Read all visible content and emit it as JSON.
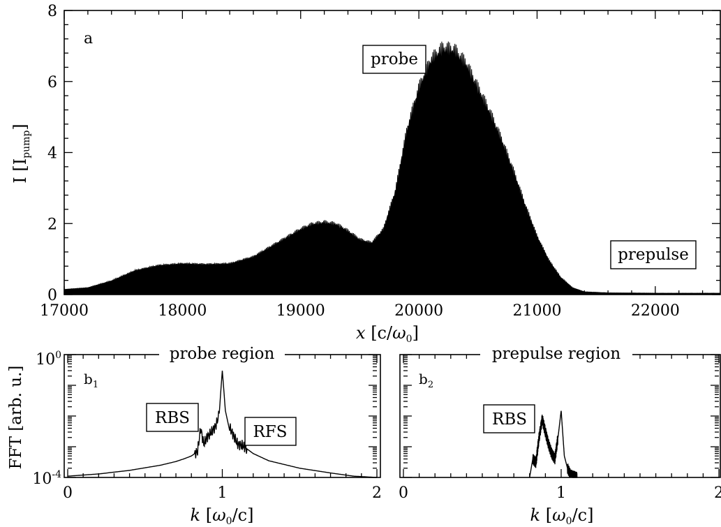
{
  "chart_data": [
    {
      "id": "a",
      "type": "area",
      "panel_label": "a",
      "xlabel": "x [c/ω0]",
      "ylabel": "I [I_pump]",
      "xlim": [
        17000,
        22550
      ],
      "ylim": [
        0,
        8
      ],
      "xticks": [
        17000,
        18000,
        19000,
        20000,
        21000,
        22000
      ],
      "xtick_labels": [
        "17000",
        "18000",
        "19000",
        "20000",
        "21000",
        "22000"
      ],
      "yticks": [
        0,
        2,
        4,
        6,
        8
      ],
      "ytick_labels": [
        "0",
        "2",
        "4",
        "6",
        "8"
      ],
      "series_color": "#000000",
      "annotations": [
        "probe",
        "prepulse"
      ],
      "envelope": {
        "x": [
          17000,
          17200,
          17400,
          17600,
          17800,
          18000,
          18200,
          18400,
          18600,
          18800,
          19000,
          19100,
          19200,
          19300,
          19400,
          19500,
          19600,
          19700,
          19800,
          19900,
          20000,
          20100,
          20200,
          20300,
          20400,
          20500,
          20600,
          20700,
          20800,
          20900,
          21000,
          21100,
          21200,
          21300,
          21400,
          21600,
          22000,
          22550
        ],
        "y": [
          0.15,
          0.2,
          0.4,
          0.7,
          0.85,
          0.9,
          0.88,
          0.9,
          1.1,
          1.5,
          1.9,
          2.05,
          2.1,
          2.05,
          1.85,
          1.6,
          1.5,
          1.9,
          3.0,
          4.8,
          6.0,
          6.8,
          7.15,
          7.1,
          6.7,
          6.0,
          5.3,
          4.5,
          3.6,
          2.6,
          1.7,
          1.0,
          0.5,
          0.2,
          0.08,
          0.05,
          0.04,
          0.04
        ]
      }
    },
    {
      "id": "b1",
      "type": "line",
      "panel_label": "b1",
      "title": "probe region",
      "xlabel": "k [ω0/c]",
      "ylabel": "FFT [arb. u.]",
      "xlim": [
        0,
        2
      ],
      "ylim": [
        0.0001,
        1
      ],
      "yscale": "log",
      "xticks": [
        0,
        1,
        2
      ],
      "xtick_labels": [
        "0",
        "1",
        "2"
      ],
      "ytick_labels": [
        "10⁰",
        "10⁻⁴"
      ],
      "annotations": [
        "RBS",
        "RFS"
      ],
      "series": [
        {
          "x": [
            0,
            0.2,
            0.4,
            0.6,
            0.7,
            0.75,
            0.8,
            0.84,
            0.86,
            0.88,
            0.9,
            0.93,
            0.96,
            0.98,
            1.0,
            1.02,
            1.04,
            1.07,
            1.1,
            1.13,
            1.2,
            1.3,
            1.5,
            1.7,
            1.85,
            2.0
          ],
          "y": [
            0.00011,
            0.00013,
            0.00017,
            0.00025,
            0.00033,
            0.0004,
            0.0005,
            0.0007,
            0.004,
            0.0012,
            0.002,
            0.003,
            0.005,
            0.012,
            0.3,
            0.015,
            0.005,
            0.0025,
            0.0012,
            0.0011,
            0.0006,
            0.00035,
            0.0002,
            0.00014,
            0.00011,
            0.0001
          ]
        }
      ]
    },
    {
      "id": "b2",
      "type": "line",
      "panel_label": "b2",
      "title": "prepulse region",
      "xlabel": "k [ω0/c]",
      "xlim": [
        0,
        2
      ],
      "ylim": [
        0.0001,
        1
      ],
      "yscale": "log",
      "xticks": [
        0,
        1,
        2
      ],
      "xtick_labels": [
        "0",
        "1",
        "2"
      ],
      "annotations": [
        "RBS"
      ],
      "series": [
        {
          "x": [
            0.8,
            0.82,
            0.84,
            0.86,
            0.88,
            0.9,
            0.92,
            0.94,
            0.96,
            0.98,
            1.0,
            1.02,
            1.04,
            1.06,
            1.1
          ],
          "y": [
            0.0001,
            0.0004,
            0.0003,
            0.002,
            0.008,
            0.003,
            0.0012,
            0.0006,
            0.0004,
            0.002,
            0.015,
            0.0005,
            0.0002,
            0.00012,
            0.0001
          ]
        }
      ]
    }
  ]
}
